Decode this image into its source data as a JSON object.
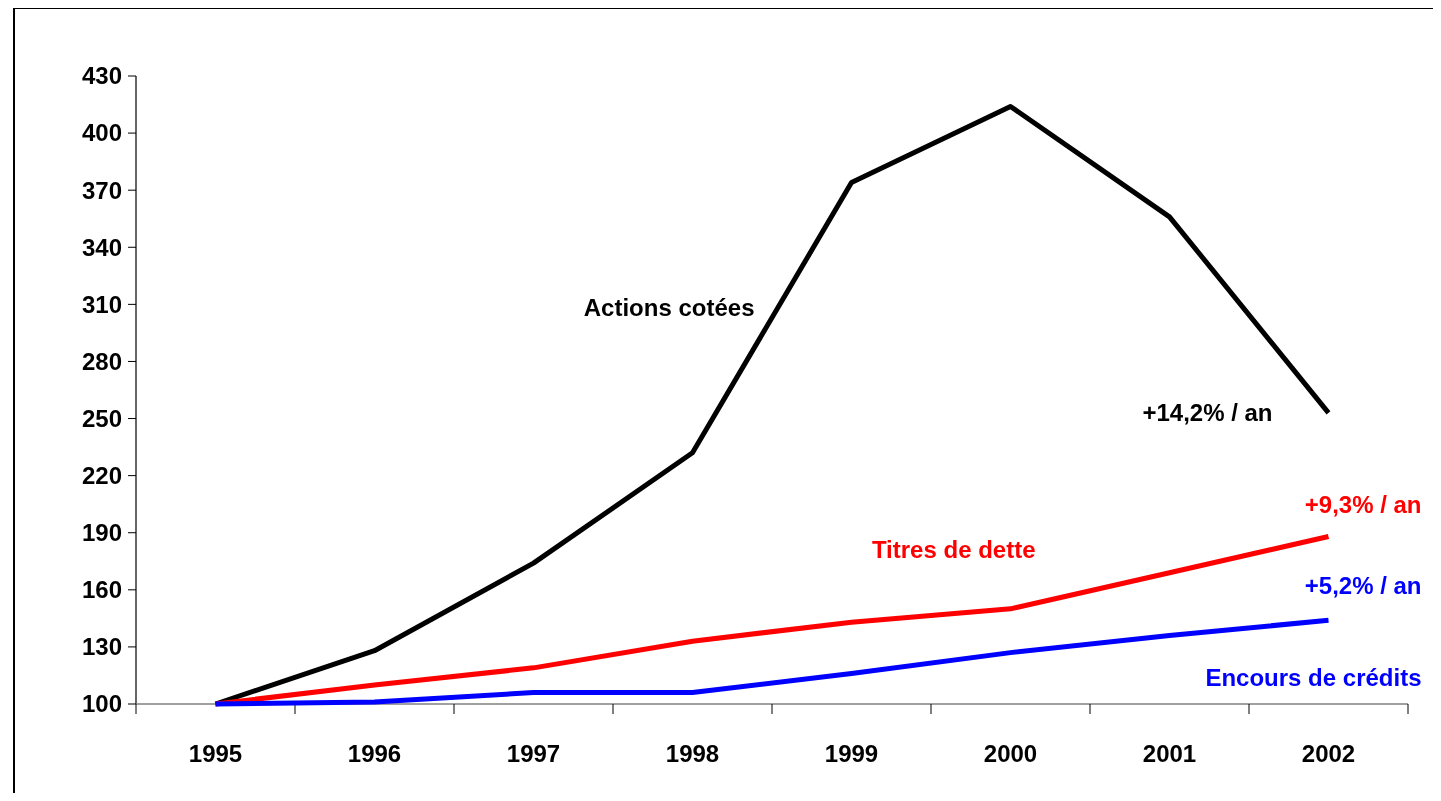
{
  "chart_data": {
    "type": "line",
    "categories": [
      "1995",
      "1996",
      "1997",
      "1998",
      "1999",
      "2000",
      "2001",
      "2002"
    ],
    "series": [
      {
        "name": "Actions cotées",
        "color": "#000000",
        "values": [
          100,
          128,
          174,
          232,
          374,
          414,
          356,
          253
        ]
      },
      {
        "name": "Titres de dette",
        "color": "#ff0000",
        "values": [
          100,
          110,
          119,
          133,
          143,
          150,
          169,
          188
        ]
      },
      {
        "name": "Encours de crédits",
        "color": "#0000ff",
        "values": [
          100,
          101,
          106,
          106,
          116,
          127,
          136,
          144
        ]
      }
    ],
    "ylim": [
      100,
      430
    ],
    "yticks": [
      100,
      130,
      160,
      190,
      220,
      250,
      280,
      310,
      340,
      370,
      400,
      430
    ],
    "annotations": [
      {
        "text": "+14,2% / an",
        "x": "2002",
        "y": 253
      },
      {
        "text": "+9,3% / an",
        "x": "2002",
        "y": 188
      },
      {
        "text": "+5,2% / an",
        "x": "2002",
        "y": 144
      }
    ],
    "grid": false,
    "marker": "none",
    "line_style": "solid"
  }
}
